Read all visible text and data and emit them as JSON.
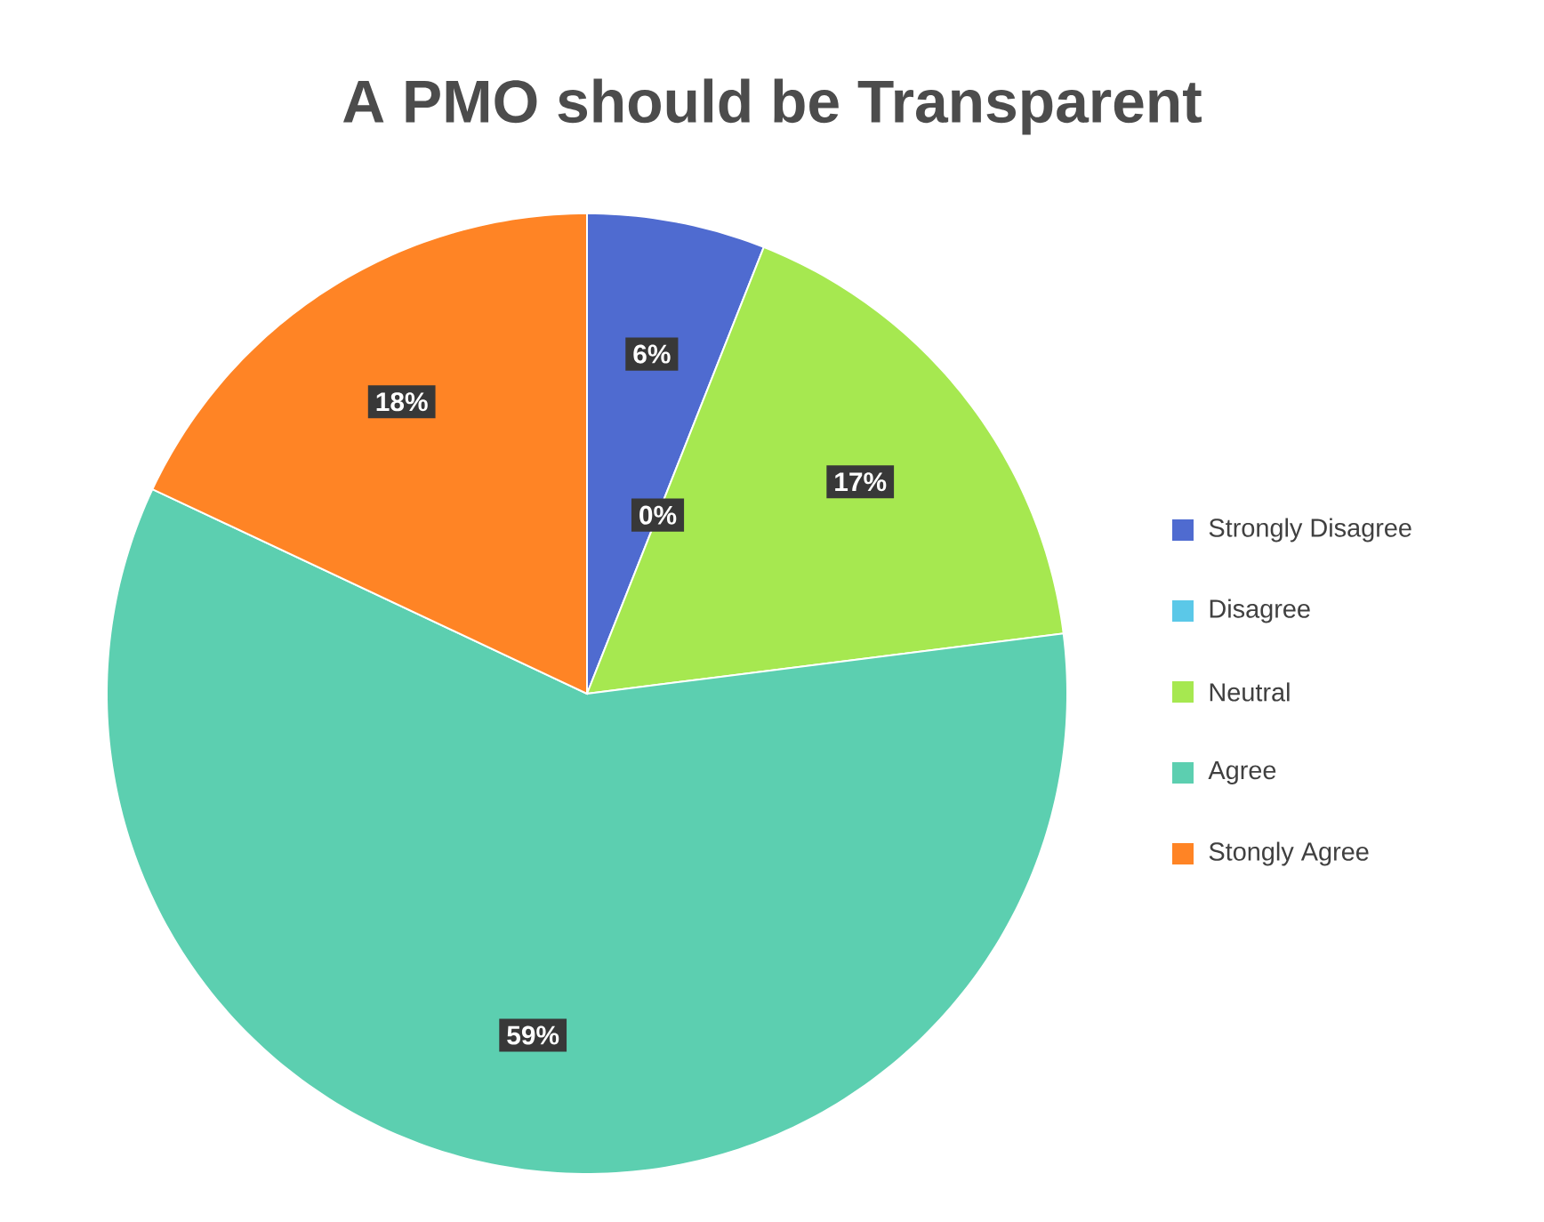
{
  "chart_data": {
    "type": "pie",
    "title": "A PMO should be Transparent",
    "categories": [
      "Strongly Disagree",
      "Disagree",
      "Neutral",
      "Agree",
      "Stongly Agree"
    ],
    "values": [
      6,
      0,
      17,
      59,
      18
    ],
    "value_labels": [
      "6%",
      "0%",
      "17%",
      "59%",
      "18%"
    ],
    "colors": [
      "#4f6bd0",
      "#5bc8e8",
      "#a6e850",
      "#5ccfb0",
      "#ff8425"
    ],
    "legend": "right"
  }
}
